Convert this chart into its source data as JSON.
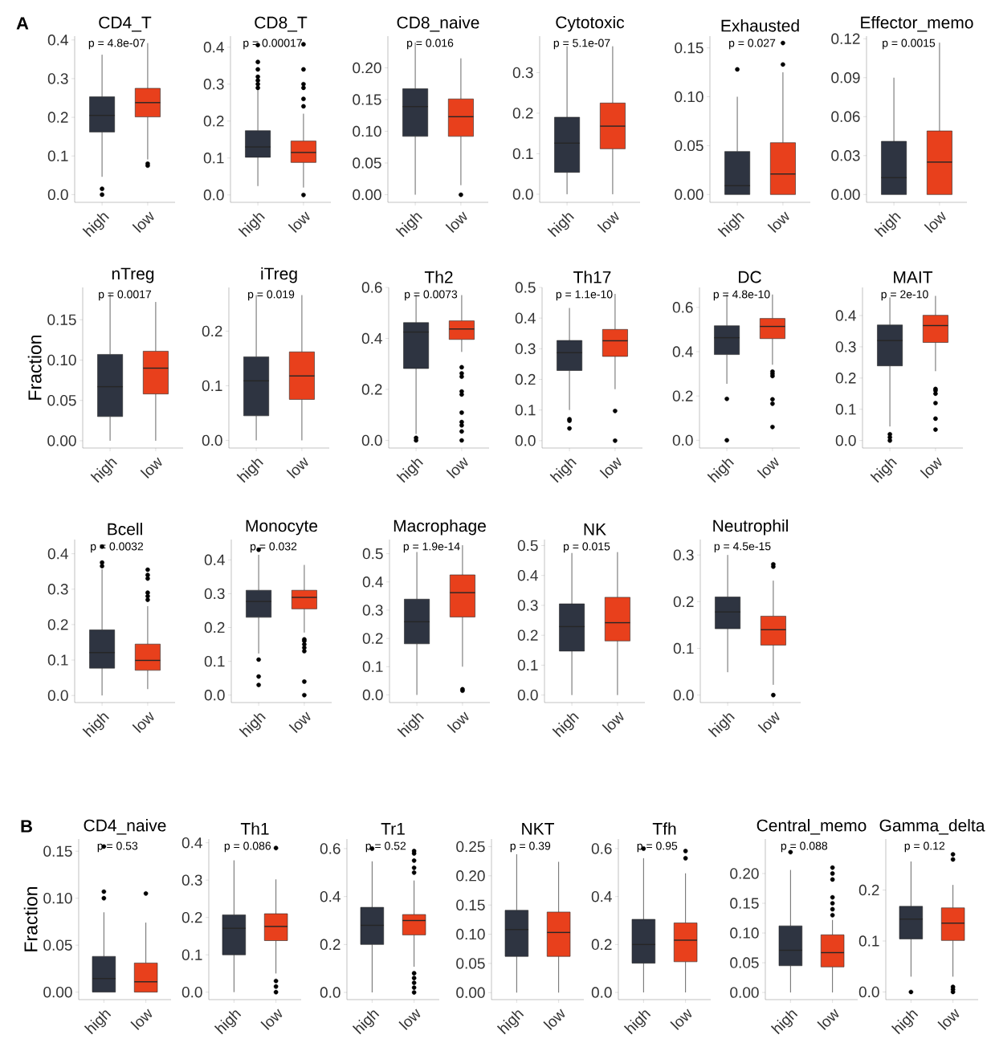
{
  "chart_data": [
    {
      "type": "box",
      "title": "CD4_T",
      "annotations": [
        "p = 4.8e-07",
        "A"
      ],
      "categories": [
        "high",
        "low"
      ],
      "colors": [
        "#2e3441",
        "#e8401c"
      ],
      "ylim": [
        -0.02,
        0.41
      ],
      "yticks": [
        {
          "value": 0,
          "label": "0.0"
        },
        0.1,
        0.2,
        0.3,
        0.4
      ],
      "boxes": [
        {
          "low": 0.046,
          "q1": 0.162,
          "median": 0.205,
          "q3": 0.253,
          "high": 0.362,
          "outliers": [
            0.0,
            0.015
          ]
        },
        {
          "low": 0.091,
          "q1": 0.201,
          "median": 0.238,
          "q3": 0.275,
          "high": 0.392,
          "outliers": [
            0.08,
            0.075
          ]
        }
      ]
    },
    {
      "type": "box",
      "title": "CD8_T",
      "annotations": [
        "p = 0.00017"
      ],
      "categories": [
        "high",
        "low"
      ],
      "colors": [
        "#2e3441",
        "#e8401c"
      ],
      "ylim": [
        -0.02,
        0.43
      ],
      "yticks": [
        {
          "value": 0,
          "label": "0.0"
        },
        0.1,
        0.2,
        0.3,
        0.4
      ],
      "boxes": [
        {
          "low": 0.024,
          "q1": 0.102,
          "median": 0.13,
          "q3": 0.174,
          "high": 0.287,
          "outliers": [
            0.29,
            0.3,
            0.31,
            0.32,
            0.34,
            0.36,
            0.406
          ]
        },
        {
          "low": 0.02,
          "q1": 0.088,
          "median": 0.115,
          "q3": 0.146,
          "high": 0.22,
          "outliers": [
            0.0,
            0.24,
            0.26,
            0.29,
            0.3,
            0.34,
            0.408
          ]
        }
      ]
    },
    {
      "type": "box",
      "title": "CD8_naive",
      "annotations": [
        "p = 0.016"
      ],
      "categories": [
        "high",
        "low"
      ],
      "colors": [
        "#2e3441",
        "#e8401c"
      ],
      "ylim": [
        -0.012,
        0.25
      ],
      "yticks": [
        {
          "value": 0,
          "label": "0.00"
        },
        0.05,
        {
          "value": 0.1,
          "label": "0.10"
        },
        0.15,
        {
          "value": 0.2,
          "label": "0.20"
        }
      ],
      "boxes": [
        {
          "low": 0.0,
          "q1": 0.092,
          "median": 0.139,
          "q3": 0.167,
          "high": 0.24
        },
        {
          "low": 0.015,
          "q1": 0.092,
          "median": 0.123,
          "q3": 0.151,
          "high": 0.215,
          "outliers": [
            0.0
          ]
        }
      ]
    },
    {
      "type": "box",
      "title": "Cytotoxic",
      "annotations": [
        "p = 5.1e-07"
      ],
      "categories": [
        "high",
        "low"
      ],
      "colors": [
        "#2e3441",
        "#e8401c"
      ],
      "ylim": [
        -0.02,
        0.39
      ],
      "yticks": [
        {
          "value": 0,
          "label": "0.0"
        },
        0.1,
        0.2,
        0.3
      ],
      "boxes": [
        {
          "low": 0.0,
          "q1": 0.054,
          "median": 0.126,
          "q3": 0.19,
          "high": 0.365
        },
        {
          "low": 0.0,
          "q1": 0.112,
          "median": 0.168,
          "q3": 0.225,
          "high": 0.365
        }
      ]
    },
    {
      "type": "box",
      "title": "Exhausted",
      "annotations": [
        "p = 0.027"
      ],
      "categories": [
        "high",
        "low"
      ],
      "colors": [
        "#2e3441",
        "#e8401c"
      ],
      "ylim": [
        -0.008,
        0.162
      ],
      "yticks": [
        {
          "value": 0,
          "label": "0.00"
        },
        0.05,
        {
          "value": 0.1,
          "label": "0.10"
        },
        0.15
      ],
      "boxes": [
        {
          "low": 0.0,
          "q1": 0.0,
          "median": 0.009,
          "q3": 0.044,
          "high": 0.1,
          "outliers": [
            0.128
          ]
        },
        {
          "low": 0.0,
          "q1": 0.0,
          "median": 0.021,
          "q3": 0.053,
          "high": 0.125,
          "outliers": [
            0.133,
            0.155
          ]
        }
      ]
    },
    {
      "type": "box",
      "title": "Effector_memo",
      "annotations": [
        "p = 0.0015"
      ],
      "categories": [
        "high",
        "low"
      ],
      "colors": [
        "#2e3441",
        "#e8401c"
      ],
      "ylim": [
        -0.006,
        0.122
      ],
      "yticks": [
        {
          "value": 0,
          "label": "0.00"
        },
        0.03,
        0.06,
        0.09,
        0.12
      ],
      "boxes": [
        {
          "low": 0.0,
          "q1": 0.0,
          "median": 0.013,
          "q3": 0.041,
          "high": 0.09
        },
        {
          "low": 0.0,
          "q1": 0.0,
          "median": 0.025,
          "q3": 0.049,
          "high": 0.117
        }
      ]
    },
    {
      "type": "box",
      "title": "nTreg",
      "ylabel": "Fraction",
      "annotations": [
        "p = 0.0017"
      ],
      "categories": [
        "high",
        "low"
      ],
      "colors": [
        "#2e3441",
        "#e8401c"
      ],
      "ylim": [
        -0.009,
        0.19
      ],
      "yticks": [
        {
          "value": 0,
          "label": "0.00"
        },
        0.05,
        {
          "value": 0.1,
          "label": "0.10"
        },
        0.15
      ],
      "boxes": [
        {
          "low": 0.0,
          "q1": 0.03,
          "median": 0.067,
          "q3": 0.107,
          "high": 0.182
        },
        {
          "low": 0.0,
          "q1": 0.058,
          "median": 0.09,
          "q3": 0.111,
          "high": 0.172
        }
      ]
    },
    {
      "type": "box",
      "title": "iTreg",
      "annotations": [
        "p = 0.019"
      ],
      "categories": [
        "high",
        "low"
      ],
      "colors": [
        "#2e3441",
        "#e8401c"
      ],
      "ylim": [
        -0.014,
        0.28
      ],
      "yticks": [
        {
          "value": 0,
          "label": "0.0"
        },
        0.1,
        0.2
      ],
      "boxes": [
        {
          "low": 0.0,
          "q1": 0.045,
          "median": 0.109,
          "q3": 0.153,
          "high": 0.266
        },
        {
          "low": 0.0,
          "q1": 0.075,
          "median": 0.118,
          "q3": 0.162,
          "high": 0.266
        }
      ]
    },
    {
      "type": "box",
      "title": "Th2",
      "annotations": [
        "p = 0.0073"
      ],
      "categories": [
        "high",
        "low"
      ],
      "colors": [
        "#2e3441",
        "#e8401c"
      ],
      "ylim": [
        -0.03,
        0.6
      ],
      "yticks": [
        {
          "value": 0,
          "label": "0.0"
        },
        0.2,
        0.4,
        0.6
      ],
      "boxes": [
        {
          "low": 0.025,
          "q1": 0.282,
          "median": 0.425,
          "q3": 0.462,
          "high": 0.57,
          "outliers": [
            0.0,
            0.01
          ]
        },
        {
          "low": 0.347,
          "q1": 0.396,
          "median": 0.437,
          "q3": 0.469,
          "high": 0.57,
          "outliers": [
            0.287,
            0.263,
            0.25,
            0.192,
            0.18,
            0.109,
            0.072,
            0.059,
            0.035,
            0.0
          ]
        }
      ]
    },
    {
      "type": "box",
      "title": "Th17",
      "annotations": [
        "p = 1.1e-10"
      ],
      "categories": [
        "high",
        "low"
      ],
      "colors": [
        "#2e3441",
        "#e8401c"
      ],
      "ylim": [
        -0.024,
        0.5
      ],
      "yticks": [
        {
          "value": 0,
          "label": "0.0"
        },
        0.1,
        0.2,
        0.3,
        0.4,
        0.5
      ],
      "boxes": [
        {
          "low": 0.1,
          "q1": 0.229,
          "median": 0.287,
          "q3": 0.327,
          "high": 0.433,
          "outliers": [
            0.07,
            0.065,
            0.04
          ]
        },
        {
          "low": 0.168,
          "q1": 0.275,
          "median": 0.326,
          "q3": 0.363,
          "high": 0.479,
          "outliers": [
            0.097,
            0.0
          ]
        }
      ]
    },
    {
      "type": "box",
      "title": "DC",
      "annotations": [
        "p = 4.8e-10"
      ],
      "categories": [
        "high",
        "low"
      ],
      "colors": [
        "#2e3441",
        "#e8401c"
      ],
      "ylim": [
        -0.035,
        0.69
      ],
      "yticks": [
        {
          "value": 0,
          "label": "0.0"
        },
        0.2,
        0.4,
        0.6
      ],
      "boxes": [
        {
          "low": 0.255,
          "q1": 0.387,
          "median": 0.463,
          "q3": 0.517,
          "high": 0.658,
          "outliers": [
            0.187,
            0.0
          ]
        },
        {
          "low": 0.341,
          "q1": 0.459,
          "median": 0.514,
          "q3": 0.55,
          "high": 0.658,
          "outliers": [
            0.31,
            0.3,
            0.29,
            0.185,
            0.165,
            0.06
          ]
        }
      ]
    },
    {
      "type": "box",
      "title": "MAIT",
      "annotations": [
        "p = 2e-10"
      ],
      "categories": [
        "high",
        "low"
      ],
      "colors": [
        "#2e3441",
        "#e8401c"
      ],
      "ylim": [
        -0.024,
        0.49
      ],
      "yticks": [
        {
          "value": 0,
          "label": "0.0"
        },
        0.1,
        0.2,
        0.3,
        0.4
      ],
      "boxes": [
        {
          "low": 0.045,
          "q1": 0.239,
          "median": 0.32,
          "q3": 0.37,
          "high": 0.458,
          "outliers": [
            0.02,
            0.01,
            0.0
          ]
        },
        {
          "low": 0.222,
          "q1": 0.314,
          "median": 0.368,
          "q3": 0.401,
          "high": 0.463,
          "outliers": [
            0.165,
            0.16,
            0.15,
            0.12,
            0.07,
            0.035
          ]
        }
      ]
    },
    {
      "type": "box",
      "title": "Bcell",
      "annotations": [
        "p = 0.0032"
      ],
      "categories": [
        "high",
        "low"
      ],
      "colors": [
        "#2e3441",
        "#e8401c"
      ],
      "ylim": [
        -0.02,
        0.44
      ],
      "yticks": [
        {
          "value": 0,
          "label": "0.0"
        },
        0.1,
        0.2,
        0.3,
        0.4
      ],
      "boxes": [
        {
          "low": 0.0,
          "q1": 0.077,
          "median": 0.121,
          "q3": 0.185,
          "high": 0.356,
          "outliers": [
            0.365,
            0.375,
            0.42
          ]
        },
        {
          "low": 0.018,
          "q1": 0.071,
          "median": 0.099,
          "q3": 0.145,
          "high": 0.252,
          "outliers": [
            0.27,
            0.28,
            0.29,
            0.33,
            0.34,
            0.355
          ]
        }
      ]
    },
    {
      "type": "box",
      "title": "Monocyte",
      "annotations": [
        "p = 0.032"
      ],
      "categories": [
        "high",
        "low"
      ],
      "colors": [
        "#2e3441",
        "#e8401c"
      ],
      "ylim": [
        -0.022,
        0.46
      ],
      "yticks": [
        {
          "value": 0,
          "label": "0.0"
        },
        0.1,
        0.2,
        0.3,
        0.4
      ],
      "boxes": [
        {
          "low": 0.123,
          "q1": 0.23,
          "median": 0.277,
          "q3": 0.31,
          "high": 0.415,
          "outliers": [
            0.43,
            0.105,
            0.055,
            0.03
          ]
        },
        {
          "low": 0.185,
          "q1": 0.255,
          "median": 0.289,
          "q3": 0.31,
          "high": 0.385,
          "outliers": [
            0.165,
            0.16,
            0.15,
            0.14,
            0.13,
            0.04,
            0.0
          ]
        }
      ]
    },
    {
      "type": "box",
      "title": "Macrophage",
      "annotations": [
        "p = 1.9e-14"
      ],
      "categories": [
        "high",
        "low"
      ],
      "colors": [
        "#2e3441",
        "#e8401c"
      ],
      "ylim": [
        -0.027,
        0.55
      ],
      "yticks": [
        {
          "value": 0,
          "label": "0.0"
        },
        0.1,
        0.2,
        0.3,
        0.4,
        0.5
      ],
      "boxes": [
        {
          "low": 0.0,
          "q1": 0.181,
          "median": 0.259,
          "q3": 0.339,
          "high": 0.506
        },
        {
          "low": 0.1,
          "q1": 0.276,
          "median": 0.362,
          "q3": 0.425,
          "high": 0.53,
          "outliers": [
            0.02,
            0.015
          ]
        }
      ]
    },
    {
      "type": "box",
      "title": "NK",
      "annotations": [
        "p = 0.015"
      ],
      "categories": [
        "high",
        "low"
      ],
      "colors": [
        "#2e3441",
        "#e8401c"
      ],
      "ylim": [
        -0.025,
        0.52
      ],
      "yticks": [
        {
          "value": 0,
          "label": "0.0"
        },
        0.1,
        0.2,
        0.3,
        0.4,
        0.5
      ],
      "boxes": [
        {
          "low": 0.0,
          "q1": 0.147,
          "median": 0.229,
          "q3": 0.305,
          "high": 0.475
        },
        {
          "low": 0.0,
          "q1": 0.181,
          "median": 0.242,
          "q3": 0.327,
          "high": 0.478
        }
      ]
    },
    {
      "type": "box",
      "title": "Neutrophil",
      "annotations": [
        "p = 4.5e-15"
      ],
      "categories": [
        "high",
        "low"
      ],
      "colors": [
        "#2e3441",
        "#e8401c"
      ],
      "ylim": [
        -0.016,
        0.333
      ],
      "yticks": [
        {
          "value": 0,
          "label": "0.0"
        },
        0.1,
        0.2,
        0.3
      ],
      "boxes": [
        {
          "low": 0.049,
          "q1": 0.142,
          "median": 0.178,
          "q3": 0.21,
          "high": 0.3
        },
        {
          "low": 0.022,
          "q1": 0.107,
          "median": 0.14,
          "q3": 0.169,
          "high": 0.245,
          "outliers": [
            0.28,
            0.275,
            0.0
          ]
        }
      ]
    },
    {
      "type": "box",
      "title": "CD4_naive",
      "ylabel": "Fraction",
      "annotations": [
        "p = 0.53",
        "B"
      ],
      "categories": [
        "high",
        "low"
      ],
      "colors": [
        "#2e3441",
        "#e8401c"
      ],
      "ylim": [
        -0.008,
        0.163
      ],
      "yticks": [
        {
          "value": 0,
          "label": "0.00"
        },
        0.05,
        {
          "value": 0.1,
          "label": "0.10"
        },
        0.15
      ],
      "boxes": [
        {
          "low": 0.0,
          "q1": 0.0,
          "median": 0.0145,
          "q3": 0.038,
          "high": 0.085,
          "outliers": [
            0.155,
            0.107,
            0.1
          ]
        },
        {
          "low": 0.0,
          "q1": 0.0,
          "median": 0.011,
          "q3": 0.031,
          "high": 0.074,
          "outliers": [
            0.105
          ]
        }
      ]
    },
    {
      "type": "box",
      "title": "Th1",
      "annotations": [
        "p = 0.086"
      ],
      "categories": [
        "high",
        "low"
      ],
      "colors": [
        "#2e3441",
        "#e8401c"
      ],
      "ylim": [
        -0.02,
        0.41
      ],
      "yticks": [
        {
          "value": 0,
          "label": "0.0"
        },
        0.1,
        0.2,
        0.3,
        0.4
      ],
      "boxes": [
        {
          "low": 0.0,
          "q1": 0.1,
          "median": 0.171,
          "q3": 0.207,
          "high": 0.353
        },
        {
          "low": 0.05,
          "q1": 0.138,
          "median": 0.176,
          "q3": 0.21,
          "high": 0.302,
          "outliers": [
            0.386,
            0.03,
            0.015,
            0.0
          ]
        }
      ]
    },
    {
      "type": "box",
      "title": "Tr1",
      "annotations": [
        "p = 0.52"
      ],
      "categories": [
        "high",
        "low"
      ],
      "colors": [
        "#2e3441",
        "#e8401c"
      ],
      "ylim": [
        -0.03,
        0.64
      ],
      "yticks": [
        {
          "value": 0,
          "label": "0.0"
        },
        0.2,
        0.4,
        0.6
      ],
      "boxes": [
        {
          "low": 0.0,
          "q1": 0.2,
          "median": 0.28,
          "q3": 0.355,
          "high": 0.547,
          "outliers": [
            0.6
          ]
        },
        {
          "low": 0.107,
          "q1": 0.24,
          "median": 0.3,
          "q3": 0.325,
          "high": 0.467,
          "outliers": [
            0.59,
            0.58,
            0.55,
            0.52,
            0.5,
            0.08,
            0.06,
            0.04,
            0.02,
            0.0
          ]
        }
      ]
    },
    {
      "type": "box",
      "title": "NKT",
      "annotations": [
        "p = 0.39"
      ],
      "categories": [
        "high",
        "low"
      ],
      "colors": [
        "#2e3441",
        "#e8401c"
      ],
      "ylim": [
        -0.012,
        0.263
      ],
      "yticks": [
        {
          "value": 0,
          "label": "0.00"
        },
        0.05,
        {
          "value": 0.1,
          "label": "0.10"
        },
        0.15,
        {
          "value": 0.2,
          "label": "0.20"
        },
        0.25
      ],
      "boxes": [
        {
          "low": 0.0,
          "q1": 0.062,
          "median": 0.108,
          "q3": 0.141,
          "high": 0.237
        },
        {
          "low": 0.0,
          "q1": 0.062,
          "median": 0.103,
          "q3": 0.138,
          "high": 0.224
        }
      ]
    },
    {
      "type": "box",
      "title": "Tfh",
      "annotations": [
        "p = 0.95"
      ],
      "categories": [
        "high",
        "low"
      ],
      "colors": [
        "#2e3441",
        "#e8401c"
      ],
      "ylim": [
        -0.03,
        0.64
      ],
      "yticks": [
        {
          "value": 0,
          "label": "0.0"
        },
        0.2,
        0.4,
        0.6
      ],
      "boxes": [
        {
          "low": 0.0,
          "q1": 0.122,
          "median": 0.2,
          "q3": 0.305,
          "high": 0.56,
          "outliers": [
            0.6
          ]
        },
        {
          "low": 0.0,
          "q1": 0.128,
          "median": 0.218,
          "q3": 0.29,
          "high": 0.497,
          "outliers": [
            0.56,
            0.59
          ]
        }
      ]
    },
    {
      "type": "box",
      "title": "Central_memo",
      "annotations": [
        "p = 0.088"
      ],
      "categories": [
        "high",
        "low"
      ],
      "colors": [
        "#2e3441",
        "#e8401c"
      ],
      "ylim": [
        -0.012,
        0.258
      ],
      "yticks": [
        {
          "value": 0,
          "label": "0.00"
        },
        0.05,
        {
          "value": 0.1,
          "label": "0.10"
        },
        0.15,
        {
          "value": 0.2,
          "label": "0.20"
        }
      ],
      "boxes": [
        {
          "low": 0.0,
          "q1": 0.045,
          "median": 0.071,
          "q3": 0.112,
          "high": 0.206,
          "outliers": [
            0.236
          ]
        },
        {
          "low": 0.0,
          "q1": 0.043,
          "median": 0.067,
          "q3": 0.097,
          "high": 0.122,
          "outliers": [
            0.13,
            0.14,
            0.15,
            0.16,
            0.19,
            0.2,
            0.21
          ]
        }
      ]
    },
    {
      "type": "box",
      "title": "Gamma_delta",
      "annotations": [
        "p = 0.12"
      ],
      "categories": [
        "high",
        "low"
      ],
      "colors": [
        "#2e3441",
        "#e8401c"
      ],
      "ylim": [
        -0.015,
        0.3
      ],
      "yticks": [
        {
          "value": 0,
          "label": "0.0"
        },
        0.1,
        0.2
      ],
      "boxes": [
        {
          "low": 0.03,
          "q1": 0.104,
          "median": 0.143,
          "q3": 0.168,
          "high": 0.256,
          "outliers": [
            0.0
          ]
        },
        {
          "low": 0.03,
          "q1": 0.101,
          "median": 0.135,
          "q3": 0.165,
          "high": 0.21,
          "outliers": [
            0.27,
            0.26,
            0.01,
            0.005,
            0.0
          ]
        }
      ]
    }
  ]
}
